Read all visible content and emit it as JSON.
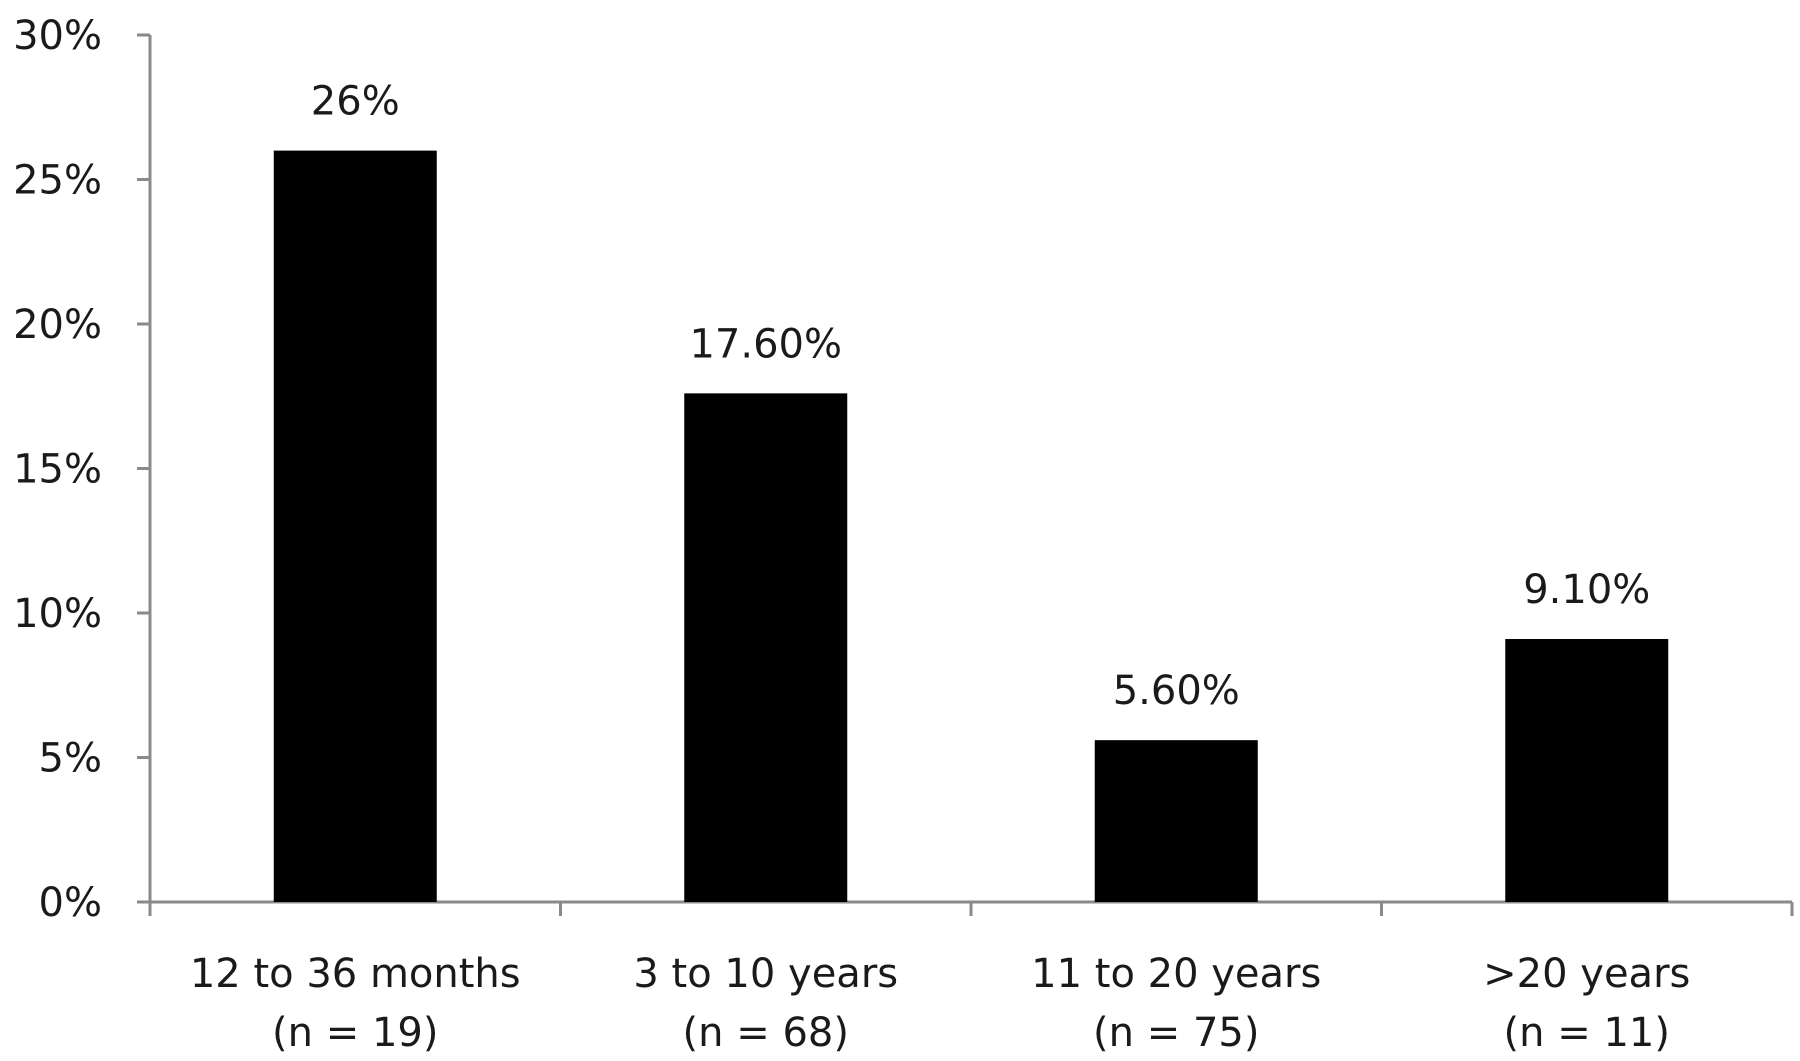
{
  "chart_data": {
    "type": "bar",
    "categories": [
      "12 to 36 months",
      "3 to 10 years",
      "11 to 20 years",
      ">20 years"
    ],
    "category_sublabels": [
      "(n = 19)",
      "(n = 68)",
      "(n = 75)",
      "(n = 11)"
    ],
    "values": [
      26,
      17.6,
      5.6,
      9.1
    ],
    "data_labels": [
      "26%",
      "17.60%",
      "5.60%",
      "9.10%"
    ],
    "ylim": [
      0,
      30
    ],
    "yticks": [
      0,
      5,
      10,
      15,
      20,
      25,
      30
    ],
    "ytick_labels": [
      "0%",
      "5%",
      "10%",
      "15%",
      "20%",
      "25%",
      "30%"
    ],
    "grid": false,
    "bar_color": "#000000",
    "title": "",
    "xlabel": "",
    "ylabel": ""
  }
}
